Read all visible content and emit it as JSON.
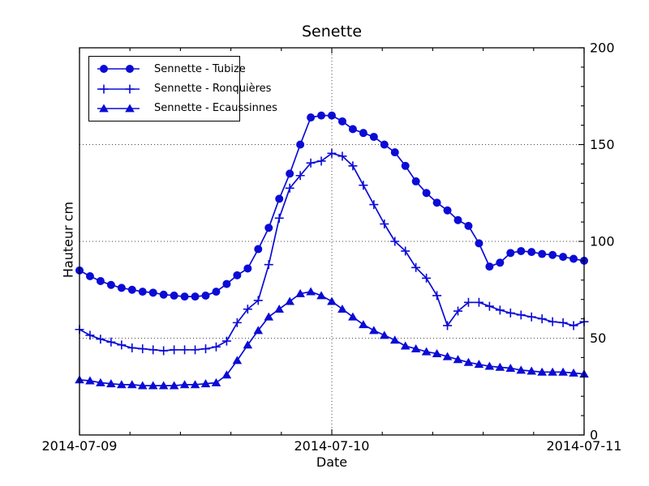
{
  "chart_data": {
    "type": "line",
    "title": "Senette",
    "xlabel": "Date",
    "ylabel": "Hauteur cm",
    "ylim": [
      0,
      200
    ],
    "y_major_ticks": [
      0,
      50,
      100,
      150,
      200
    ],
    "y_tick_labels": [
      "0",
      "50",
      "100",
      "150",
      "200"
    ],
    "y_minor_step": 10,
    "x_tick_labels": [
      "2014-07-09",
      "2014-07-10",
      "2014-07-11"
    ],
    "x_major_ticks_hours": [
      0,
      24,
      48
    ],
    "x_minor_divisions": 5,
    "x_step_hours": 1,
    "grid": "dotted",
    "legend_position": "upper left",
    "series": [
      {
        "name": "Sennette - Tubize",
        "marker": "circle",
        "values": [
          85,
          82,
          79.5,
          77.5,
          76,
          75,
          74,
          73.5,
          72.5,
          72,
          71.5,
          71.5,
          72,
          74,
          78,
          82.5,
          86,
          96,
          107,
          122,
          135,
          150,
          164,
          165,
          165,
          162,
          158,
          156,
          154,
          150,
          146,
          139,
          131,
          125,
          120,
          116,
          111,
          108,
          99,
          87,
          89,
          94,
          95,
          94.5,
          93.5,
          93,
          92,
          91,
          90
        ]
      },
      {
        "name": "Sennette - Ronquières",
        "marker": "plus",
        "values": [
          54.5,
          51.5,
          49.5,
          48,
          46.5,
          45,
          44.5,
          44,
          43.5,
          44,
          44,
          44,
          44.5,
          45.5,
          48.5,
          58,
          65,
          69.5,
          88,
          112,
          127.5,
          134,
          140.5,
          141.5,
          145.5,
          144,
          139,
          129,
          119,
          109,
          100,
          95,
          86.5,
          81,
          72,
          56.5,
          64,
          68.5,
          68.5,
          66.5,
          64.5,
          63,
          62,
          61,
          60,
          58.5,
          58,
          56.5,
          58.5
        ]
      },
      {
        "name": "Sennette - Ecaussinnes",
        "marker": "triangle",
        "values": [
          28.5,
          28,
          27,
          26.5,
          26,
          26,
          25.5,
          25.5,
          25.5,
          25.5,
          26,
          26,
          26.5,
          27,
          31,
          38.5,
          46.5,
          54,
          61,
          65,
          69,
          73,
          74,
          72,
          69,
          65,
          61,
          57,
          54,
          51.5,
          49,
          46,
          44.5,
          43,
          42,
          40.5,
          39,
          37.5,
          36.5,
          35.5,
          35,
          34.5,
          33.5,
          33,
          32.5,
          32.5,
          32.5,
          32,
          31.5
        ]
      }
    ]
  },
  "colors": {
    "series": "#0b0bd6",
    "grid": "#444444",
    "axis": "#000000",
    "background": "#ffffff",
    "text": "#000000"
  }
}
